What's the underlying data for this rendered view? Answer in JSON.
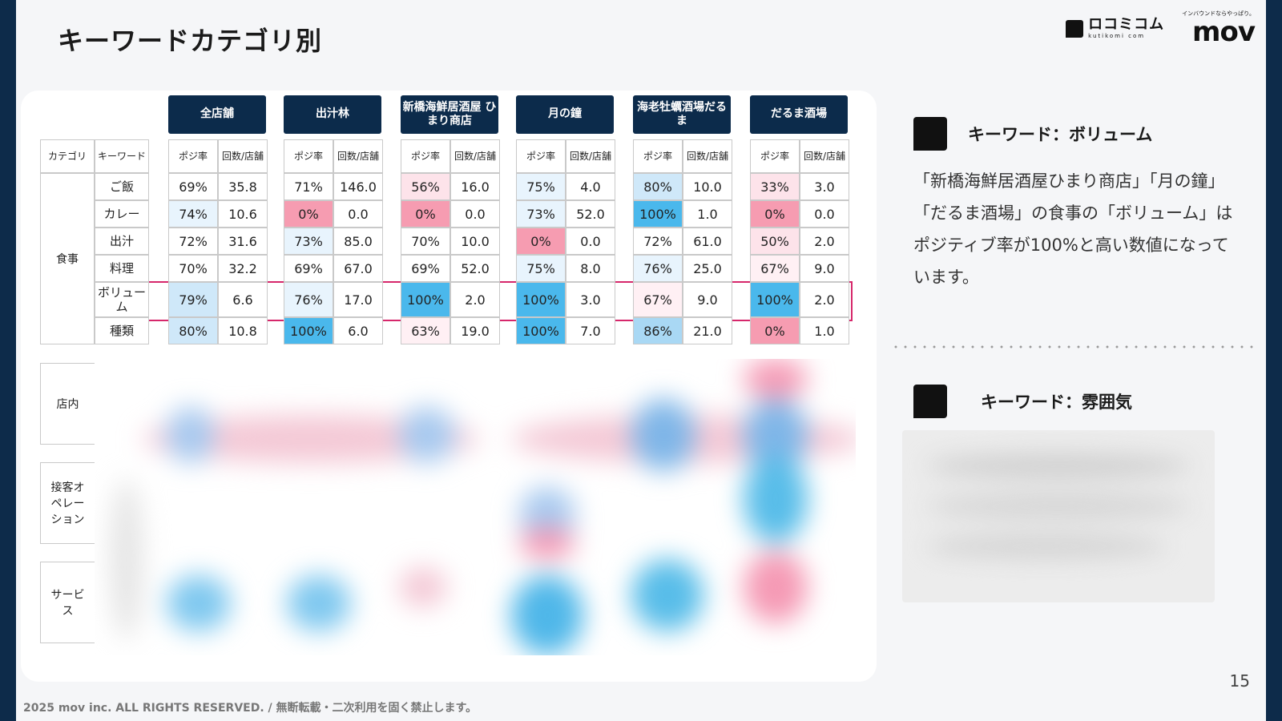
{
  "slide": {
    "title": "キーワードカテゴリ別",
    "page_number": "15",
    "footer": "2025 mov inc. ALL RIGHTS RESERVED. / 無断転載・二次利用を固く禁止します。"
  },
  "logos": {
    "kutikomi_main": "ロコミコム",
    "kutikomi_sub": "kutikomi com",
    "mov_tag": "インバウンドならやっぱり。",
    "mov_main": "mov"
  },
  "table": {
    "header_category": "カテゴリ",
    "header_keyword": "キーワード",
    "sub_headers": [
      "ポジ率",
      "回数/店舗"
    ],
    "stores": [
      "全店舗",
      "出汁林",
      "新橋海鮮居酒屋 ひまり商店",
      "月の鐘",
      "海老牡蠣酒場だるま",
      "だるま酒場"
    ],
    "category_food": "食事",
    "rows": [
      {
        "keyword": "ご飯",
        "values": [
          [
            "69%",
            "35.8"
          ],
          [
            "71%",
            "146.0"
          ],
          [
            "56%",
            "16.0"
          ],
          [
            "75%",
            "4.0"
          ],
          [
            "80%",
            "10.0"
          ],
          [
            "33%",
            "3.0"
          ]
        ]
      },
      {
        "keyword": "カレー",
        "values": [
          [
            "74%",
            "10.6"
          ],
          [
            "0%",
            "0.0"
          ],
          [
            "0%",
            "0.0"
          ],
          [
            "73%",
            "52.0"
          ],
          [
            "100%",
            "1.0"
          ],
          [
            "0%",
            "0.0"
          ]
        ]
      },
      {
        "keyword": "出汁",
        "values": [
          [
            "72%",
            "31.6"
          ],
          [
            "73%",
            "85.0"
          ],
          [
            "70%",
            "10.0"
          ],
          [
            "0%",
            "0.0"
          ],
          [
            "72%",
            "61.0"
          ],
          [
            "50%",
            "2.0"
          ]
        ]
      },
      {
        "keyword": "料理",
        "values": [
          [
            "70%",
            "32.2"
          ],
          [
            "69%",
            "67.0"
          ],
          [
            "69%",
            "52.0"
          ],
          [
            "75%",
            "8.0"
          ],
          [
            "76%",
            "25.0"
          ],
          [
            "67%",
            "9.0"
          ]
        ]
      },
      {
        "keyword": "ボリューム",
        "values": [
          [
            "79%",
            "6.6"
          ],
          [
            "76%",
            "17.0"
          ],
          [
            "100%",
            "2.0"
          ],
          [
            "100%",
            "3.0"
          ],
          [
            "67%",
            "9.0"
          ],
          [
            "100%",
            "2.0"
          ]
        ]
      },
      {
        "keyword": "種類",
        "values": [
          [
            "80%",
            "10.8"
          ],
          [
            "100%",
            "6.0"
          ],
          [
            "63%",
            "19.0"
          ],
          [
            "100%",
            "7.0"
          ],
          [
            "86%",
            "21.0"
          ],
          [
            "0%",
            "1.0"
          ]
        ]
      }
    ],
    "other_categories": [
      "店内",
      "接客オペレーション",
      "サービス"
    ]
  },
  "sidebar": {
    "keyword1_title": "キーワード：ボリューム",
    "keyword1_desc": "「新橋海鮮居酒屋ひまり商店」「月の鐘」「だるま酒場」の食事の「ボリューム」はポジティブ率が100%と高い数値になっています。",
    "keyword2_title": "キーワード：雰囲気"
  },
  "colors": {
    "navy": "#0c2b4b",
    "highlight": "#d6276b"
  }
}
